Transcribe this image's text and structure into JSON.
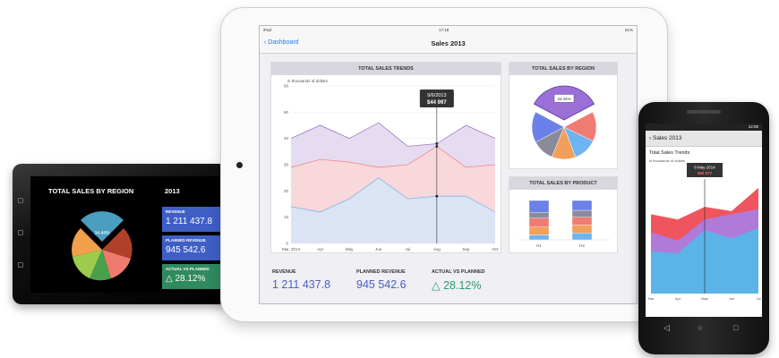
{
  "windows_phone": {
    "title": "TOTAL SALES BY REGION",
    "year": "2013",
    "pie_callout": "34.44%",
    "tiles": [
      {
        "label": "REVENUE",
        "value": "1 211 437.8",
        "color": "#3f5fc6"
      },
      {
        "label": "PLANNED REVENUE",
        "value": "945 542.6",
        "color": "#3f5fc6"
      },
      {
        "label": "ACTUAL VS PLANNED",
        "value": "△ 28.12%",
        "color": "#2f8a5f"
      }
    ],
    "pie_colors": [
      "#4a9ec0",
      "#b0402a",
      "#ee7b6d",
      "#4aa04a",
      "#9ccc4c",
      "#f0a04a"
    ]
  },
  "ipad": {
    "status": {
      "carrier": "iPad",
      "time": "17:18",
      "battery": "51%"
    },
    "back_label": "Dashboard",
    "title": "Sales 2013",
    "trends": {
      "title": "TOTAL SALES TRENDS",
      "unit_label": "in thousands of dollars",
      "tooltip_date": "9/6/2013",
      "tooltip_value": "$44 997",
      "y_ticks": [
        "0",
        "10",
        "20",
        "30",
        "40",
        "50",
        "60"
      ],
      "x_ticks": [
        "Mar, 2013",
        "Apr",
        "May",
        "Jun",
        "Jul",
        "Aug",
        "Sep",
        "Oct"
      ]
    },
    "region": {
      "title": "TOTAL SALES BY REGION",
      "callout": "34.44%"
    },
    "product": {
      "title": "TOTAL SALES BY PRODUCT",
      "x_ticks": [
        "H1",
        "H2"
      ]
    },
    "kpis": [
      {
        "label": "REVENUE",
        "value": "1 211 437.8",
        "color": "#4a5fc0"
      },
      {
        "label": "PLANNED REVENUE",
        "value": "945 542.6",
        "color": "#4a5fc0"
      },
      {
        "label": "ACTUAL VS PLANNED",
        "value": "△ 28.12%",
        "color": "#2f9a6a"
      }
    ]
  },
  "android": {
    "status_time": "12:00",
    "back_label": "Sales 2013",
    "chart_title": "Total Sales Trends",
    "unit_label": "in thousands of dollars",
    "tooltip_date": "8 May 2014",
    "tooltip_value": "$50 077",
    "x_ticks": [
      "Mar",
      "Apr",
      "May",
      "Jun",
      "Jul"
    ]
  },
  "chart_data": [
    {
      "type": "area",
      "title": "TOTAL SALES TRENDS",
      "ylabel": "in thousands of dollars",
      "ylim": [
        0,
        60
      ],
      "categories": [
        "Mar, 2013",
        "Apr",
        "May",
        "Jun",
        "Jul",
        "Aug",
        "Sep",
        "Oct"
      ],
      "series": [
        {
          "values": [
            14,
            12,
            17,
            25,
            17,
            18,
            18,
            12
          ],
          "color": "#d6e6f7"
        },
        {
          "values": [
            29,
            32,
            31,
            29,
            30,
            37,
            29,
            30
          ],
          "color": "#f9d7d7"
        },
        {
          "values": [
            40,
            45,
            40,
            46,
            37,
            38,
            45,
            40
          ],
          "color": "#e3d8f0"
        }
      ]
    },
    {
      "type": "pie",
      "title": "TOTAL SALES BY REGION",
      "values": [
        34.44,
        15,
        12,
        12,
        11,
        15.56
      ],
      "colors": [
        "#9a6fd6",
        "#f07b72",
        "#6fb4f2",
        "#f0a05a",
        "#8a8a9a",
        "#6b80e8"
      ]
    },
    {
      "type": "bar",
      "title": "TOTAL SALES BY PRODUCT",
      "categories": [
        "H1",
        "H2"
      ],
      "series": [
        {
          "values": [
            10,
            14
          ],
          "color": "#6fb4f2"
        },
        {
          "values": [
            16,
            16
          ],
          "color": "#f0a05a"
        },
        {
          "values": [
            18,
            16
          ],
          "color": "#f07b72"
        },
        {
          "values": [
            12,
            14
          ],
          "color": "#8a8a9a"
        },
        {
          "values": [
            24,
            20
          ],
          "color": "#6b80e8"
        }
      ]
    },
    {
      "type": "area",
      "title": "Total Sales Trends",
      "ylabel": "in thousands of dollars",
      "categories": [
        "Mar",
        "Apr",
        "May",
        "Jun",
        "Jul"
      ],
      "series": [
        {
          "values": [
            40,
            38,
            60,
            52,
            62
          ],
          "color": "#5cb3e8"
        },
        {
          "values": [
            58,
            50,
            70,
            75,
            80
          ],
          "color": "#b07ad8"
        },
        {
          "values": [
            75,
            70,
            82,
            78,
            100
          ],
          "color": "#f0555f"
        }
      ]
    }
  ]
}
